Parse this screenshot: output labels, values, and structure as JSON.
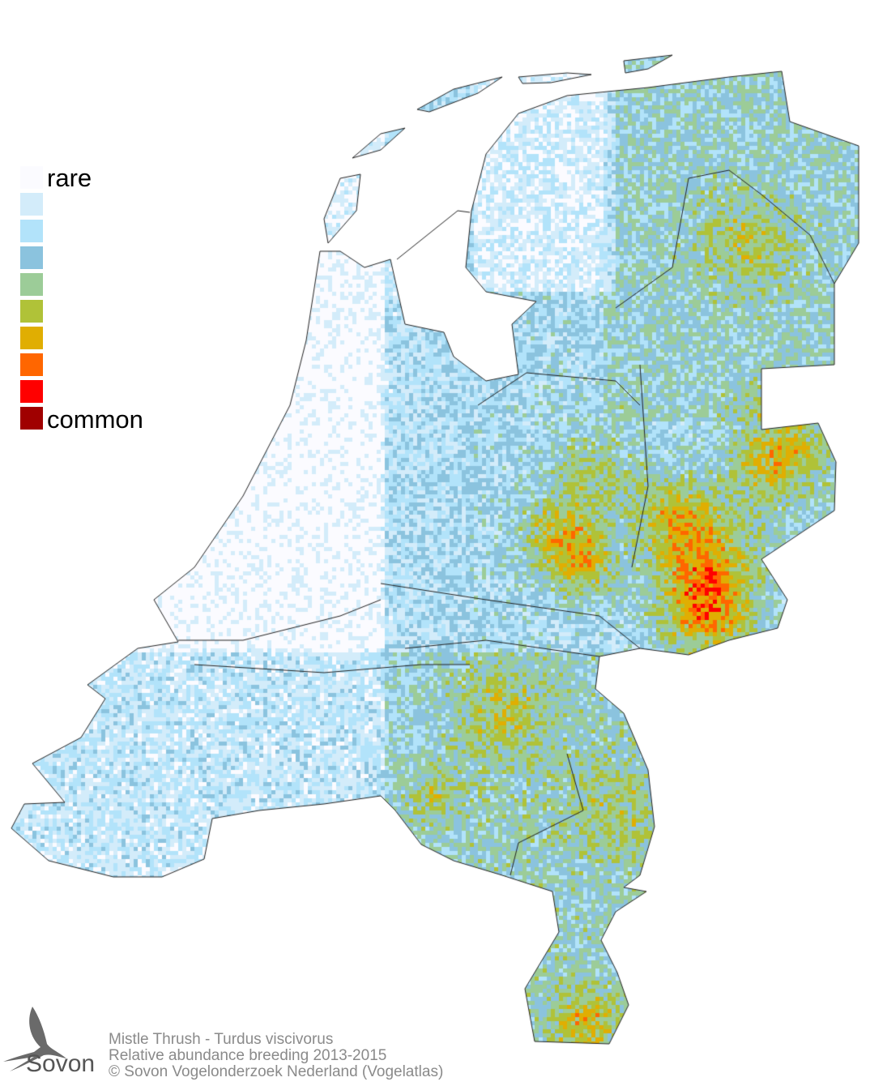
{
  "legend": {
    "label_low": "rare",
    "label_high": "common",
    "colors": [
      "#fbfbff",
      "#d3ecfa",
      "#b2e3fa",
      "#8bc3de",
      "#9ccc98",
      "#b0c238",
      "#e0ae02",
      "#ff6600",
      "#ff0000",
      "#a00000"
    ]
  },
  "caption": {
    "line1": "Mistle Thrush - Turdus viscivorus",
    "line2": "Relative abundance breeding 2013-2015",
    "line3": "© Sovon Vogelonderzoek Nederland (Vogelatlas)"
  },
  "logo": {
    "text": "Sovon"
  }
}
